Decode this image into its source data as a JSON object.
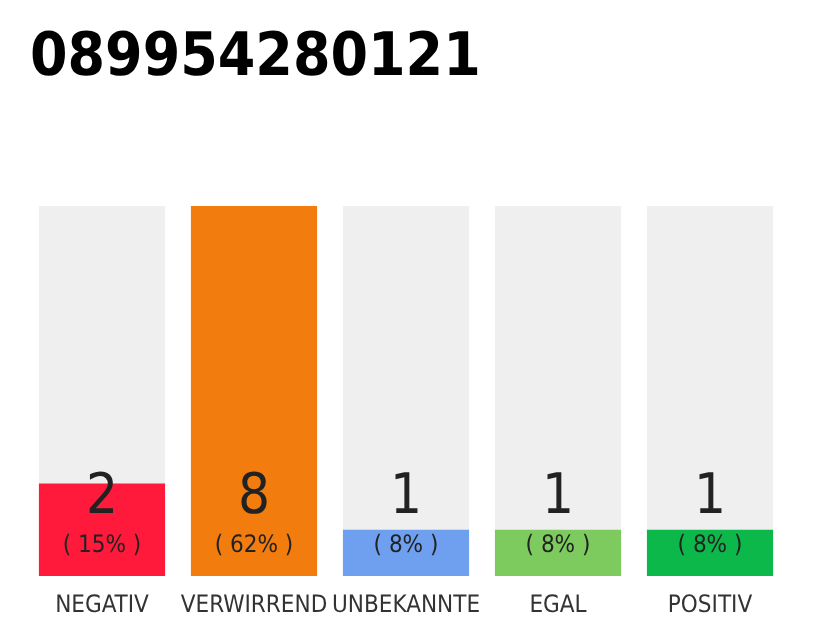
{
  "chart_data": {
    "type": "bar",
    "title": "089954280121",
    "categories": [
      "NEGATIV",
      "VERWIRREND",
      "UNBEKANNTE",
      "EGAL",
      "POSITIV"
    ],
    "values": [
      2,
      8,
      1,
      1,
      1
    ],
    "colors": [
      "#ff1a3c",
      "#f27c0e",
      "#6ea0ef",
      "#7dcb5e",
      "#0db84a"
    ],
    "value_labels": [
      "2\n( 15% )",
      "8\n( 62% )",
      "1\n( 8% )",
      "1\n( 8% )",
      "1\n( 8% )"
    ]
  }
}
